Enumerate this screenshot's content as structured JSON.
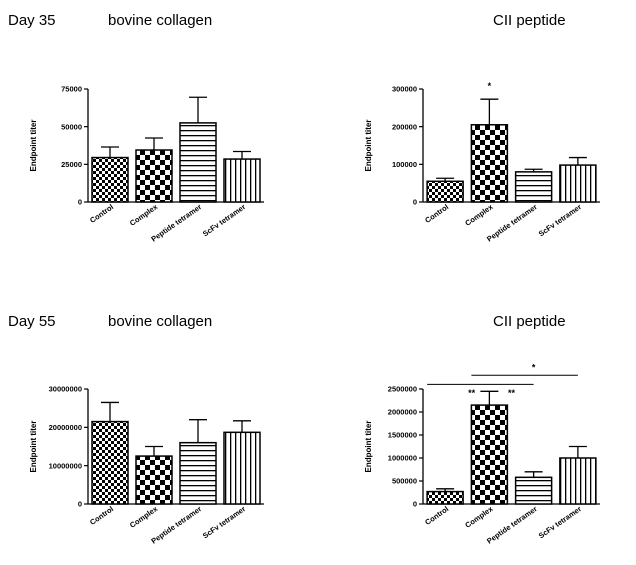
{
  "headings": {
    "day35": "Day 35",
    "day35_bovine": "bovine collagen",
    "day35_cii": "CII peptide",
    "day55": "Day 55",
    "day55_bovine": "bovine collagen",
    "day55_cii": "CII peptide"
  },
  "chart_data": [
    {
      "type": "bar",
      "title": "bovine collagen",
      "ylabel": "Endpoint titer",
      "categories": [
        "Control",
        "Complex",
        "Peptide tetramer",
        "ScFv tetramer"
      ],
      "patterns": [
        "checker-fine",
        "checker-coarse",
        "horizontal-stripes",
        "vertical-stripes"
      ],
      "values": [
        29500,
        34500,
        52500,
        28500
      ],
      "errors": [
        7000,
        8000,
        17000,
        5000
      ],
      "ylim": [
        0,
        75000
      ],
      "yticks": [
        0,
        25000,
        50000,
        75000
      ],
      "ytick_labels": [
        "0",
        "25000",
        "50000",
        "75000"
      ],
      "annotations": []
    },
    {
      "type": "bar",
      "title": "CII peptide",
      "ylabel": "Endpoint titer",
      "categories": [
        "Control",
        "Complex",
        "Peptide tetramer",
        "ScFv tetramer"
      ],
      "patterns": [
        "checker-fine",
        "checker-coarse",
        "horizontal-stripes",
        "vertical-stripes"
      ],
      "values": [
        55000,
        205000,
        80000,
        98000
      ],
      "errors": [
        8000,
        68000,
        7000,
        20000
      ],
      "ylim": [
        0,
        300000
      ],
      "yticks": [
        0,
        100000,
        200000,
        300000
      ],
      "ytick_labels": [
        "0",
        "100000",
        "200000",
        "300000"
      ],
      "annotations": [
        {
          "text": "*",
          "x": 1,
          "y": 300000
        }
      ],
      "brackets": []
    },
    {
      "type": "bar",
      "title": "bovine collagen",
      "ylabel": "Endpoint titer",
      "categories": [
        "Control",
        "Complex",
        "Peptide tetramer",
        "ScFv tetramer"
      ],
      "patterns": [
        "checker-fine",
        "checker-coarse",
        "horizontal-stripes",
        "vertical-stripes"
      ],
      "values": [
        21500000,
        12500000,
        16000000,
        18700000
      ],
      "errors": [
        5000000,
        2500000,
        6000000,
        3000000
      ],
      "ylim": [
        0,
        30000000
      ],
      "yticks": [
        0,
        10000000,
        20000000,
        30000000
      ],
      "ytick_labels": [
        "0",
        "10000000",
        "20000000",
        "30000000"
      ],
      "annotations": []
    },
    {
      "type": "bar",
      "title": "CII peptide",
      "ylabel": "Endpoint titer",
      "categories": [
        "Control",
        "Complex",
        "Peptide tetramer",
        "ScFv tetramer"
      ],
      "patterns": [
        "checker-fine",
        "checker-coarse",
        "horizontal-stripes",
        "vertical-stripes"
      ],
      "values": [
        270000,
        2150000,
        580000,
        1000000
      ],
      "errors": [
        60000,
        300000,
        120000,
        250000
      ],
      "ylim": [
        0,
        2500000
      ],
      "yticks": [
        0,
        500000,
        1000000,
        1500000,
        2000000,
        2500000
      ],
      "ytick_labels": [
        "0",
        "500000",
        "1000000",
        "1500000",
        "2000000",
        "2500000"
      ],
      "annotations": [
        {
          "text": "**",
          "x": 0.6,
          "y": 2350000
        },
        {
          "text": "**",
          "x": 1.5,
          "y": 2350000
        },
        {
          "text": "*",
          "x": 2.0,
          "y": 2900000
        }
      ],
      "brackets": [
        {
          "from": 0,
          "to": 2,
          "y": 2600000
        },
        {
          "from": 1,
          "to": 3,
          "y": 2800000
        }
      ]
    }
  ]
}
